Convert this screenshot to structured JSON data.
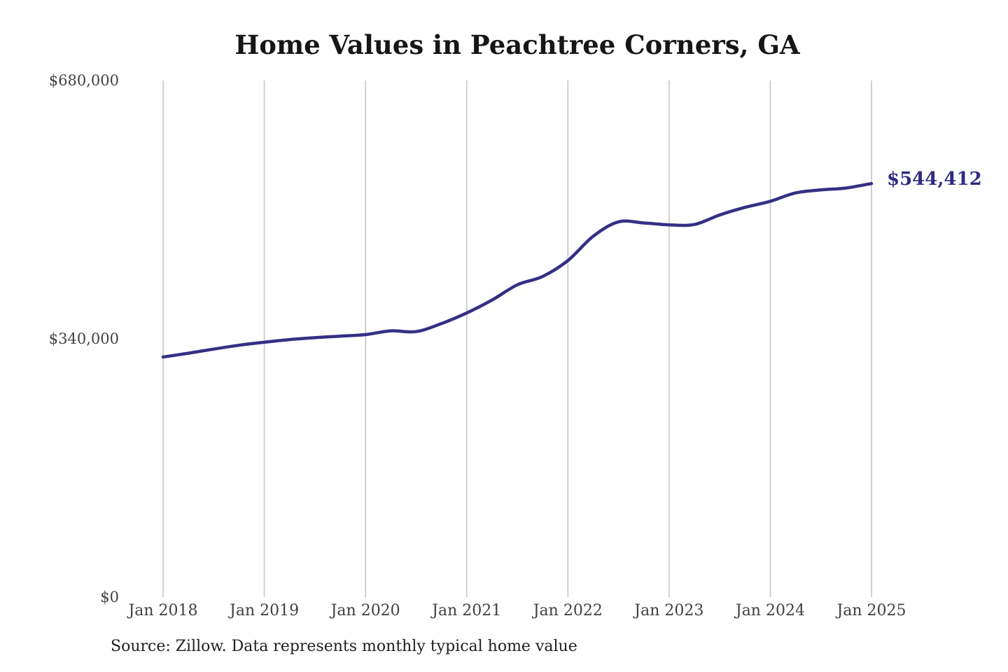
{
  "title": "Home Values in Peachtree Corners, GA",
  "end_label": "$544,412",
  "source_note": "Source: Zillow. Data represents monthly typical home value",
  "colors": {
    "line": "#343085",
    "end_label": "#302b80",
    "grid": "#c6c6c6",
    "title_text": "#161616",
    "axis_text": "#414141",
    "source_text": "#1f1f1f",
    "background": "#ffffff"
  },
  "chart_data": {
    "type": "line",
    "title": "Home Values in Peachtree Corners, GA",
    "xlabel": "",
    "ylabel": "",
    "x": [
      "2018-01",
      "2018-04",
      "2018-07",
      "2018-10",
      "2019-01",
      "2019-04",
      "2019-07",
      "2019-10",
      "2020-01",
      "2020-04",
      "2020-07",
      "2020-10",
      "2021-01",
      "2021-04",
      "2021-07",
      "2021-10",
      "2022-01",
      "2022-04",
      "2022-07",
      "2022-10",
      "2023-01",
      "2023-04",
      "2023-07",
      "2023-10",
      "2024-01",
      "2024-04",
      "2024-07",
      "2024-10",
      "2025-01"
    ],
    "values": [
      316000,
      321000,
      326500,
      331500,
      335500,
      339000,
      341500,
      343500,
      345500,
      350500,
      349500,
      360000,
      374000,
      391000,
      411000,
      422000,
      443000,
      475000,
      494000,
      492500,
      490000,
      490500,
      503000,
      513000,
      521000,
      532000,
      536000,
      538500,
      544412
    ],
    "latest_value": 544412,
    "end_annotation": "$544,412",
    "x_tick_labels": [
      "Jan 2018",
      "Jan 2019",
      "Jan 2020",
      "Jan 2021",
      "Jan 2022",
      "Jan 2023",
      "Jan 2024",
      "Jan 2025"
    ],
    "y_tick_labels": [
      "$0",
      "$340,000",
      "$680,000"
    ],
    "y_tick_values": [
      0,
      340000,
      680000
    ],
    "ylim": [
      0,
      680000
    ],
    "grid": "vertical-only",
    "legend": "none"
  }
}
